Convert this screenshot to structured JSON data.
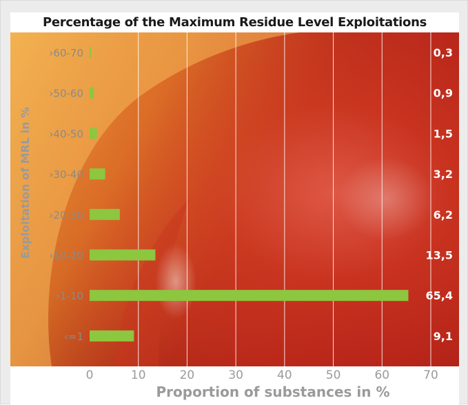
{
  "chart_data": {
    "type": "bar",
    "orientation": "horizontal",
    "title": "Percentage of the Maximum Residue Level Exploitations",
    "xlabel": "Proportion of substances in %",
    "ylabel": "Exploitation of MRL in %",
    "categories": [
      ">60-70",
      ">50-60",
      ">40-50",
      ">30-40",
      ">20-30",
      ">10-20",
      ">1-10",
      "<=1"
    ],
    "category_labels": [
      "›60-70",
      "›50-60",
      "›40-50",
      "›30-40",
      "›20-30",
      "›10-20",
      "›1-10",
      "‹=1"
    ],
    "values": [
      0.3,
      0.9,
      1.5,
      3.2,
      6.2,
      13.5,
      65.4,
      9.1
    ],
    "value_labels": [
      "0,3",
      "0,9",
      "1,5",
      "3,2",
      "6,2",
      "13,5",
      "65,4",
      "9,1"
    ],
    "xlim": [
      0,
      70
    ],
    "xticks": [
      0,
      10,
      20,
      30,
      40,
      50,
      60,
      70
    ],
    "grid": true,
    "bar_color": "#8dc63f",
    "background": "photo of a red apple"
  }
}
